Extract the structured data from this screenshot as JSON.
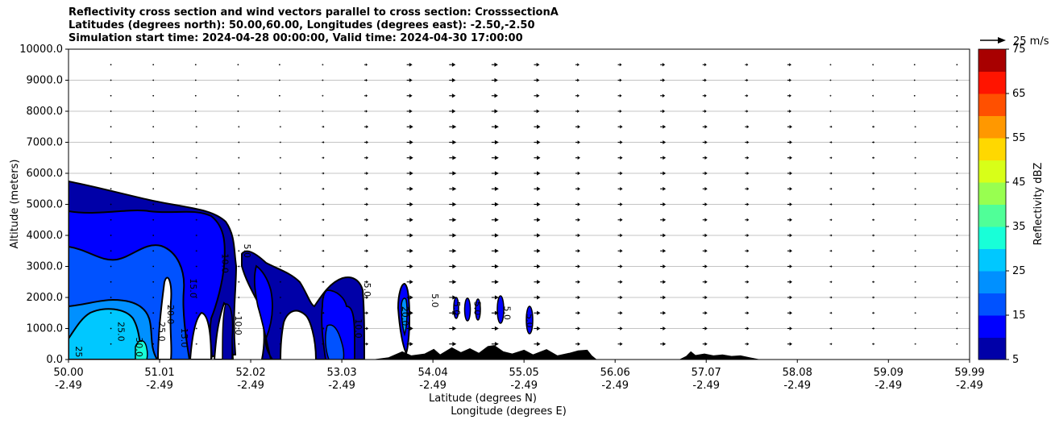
{
  "title_lines": [
    "Reflectivity cross section and wind vectors parallel to cross section: CrosssectionA",
    "Latitudes (degrees north): 50.00,60.00, Longitudes (degrees east): -2.50,-2.50",
    "Simulation start time: 2024-04-28 00:00:00, Valid time: 2024-04-30 17:00:00"
  ],
  "chart_data": {
    "type": "heatmap",
    "xlabel_lat": "Latitude (degrees N)",
    "xlabel_lon": "Longitude (degrees E)",
    "ylabel": "Altitude (meters)",
    "xlim": [
      50.0,
      59.99
    ],
    "ylim": [
      0,
      10000
    ],
    "x_ticks": [
      {
        "lat": "50.00",
        "lon": "-2.49",
        "value": 50.0
      },
      {
        "lat": "51.01",
        "lon": "-2.49",
        "value": 51.01
      },
      {
        "lat": "52.02",
        "lon": "-2.49",
        "value": 52.02
      },
      {
        "lat": "53.03",
        "lon": "-2.49",
        "value": 53.03
      },
      {
        "lat": "54.04",
        "lon": "-2.49",
        "value": 54.04
      },
      {
        "lat": "55.05",
        "lon": "-2.49",
        "value": 55.05
      },
      {
        "lat": "56.06",
        "lon": "-2.49",
        "value": 56.06
      },
      {
        "lat": "57.07",
        "lon": "-2.49",
        "value": 57.07
      },
      {
        "lat": "58.08",
        "lon": "-2.49",
        "value": 58.08
      },
      {
        "lat": "59.09",
        "lon": "-2.49",
        "value": 59.09
      },
      {
        "lat": "59.99",
        "lon": "-2.49",
        "value": 59.99
      }
    ],
    "y_ticks": [
      {
        "label": "0.0",
        "value": 0
      },
      {
        "label": "1000.0",
        "value": 1000
      },
      {
        "label": "2000.0",
        "value": 2000
      },
      {
        "label": "3000.0",
        "value": 3000
      },
      {
        "label": "4000.0",
        "value": 4000
      },
      {
        "label": "5000.0",
        "value": 5000
      },
      {
        "label": "6000.0",
        "value": 6000
      },
      {
        "label": "7000.0",
        "value": 7000
      },
      {
        "label": "8000.0",
        "value": 8000
      },
      {
        "label": "9000.0",
        "value": 9000
      },
      {
        "label": "10000.0",
        "value": 10000
      }
    ],
    "grid": "horizontal",
    "colorbar": {
      "label": "Reflectivity dBZ",
      "levels": [
        5,
        10,
        15,
        20,
        25,
        30,
        35,
        40,
        45,
        50,
        55,
        60,
        65,
        70,
        75
      ],
      "colors": [
        "#0000a8",
        "#0000ff",
        "#0052ff",
        "#0090ff",
        "#00c8ff",
        "#18ffd8",
        "#50ff98",
        "#98ff50",
        "#d8ff18",
        "#ffd800",
        "#ff9800",
        "#ff5000",
        "#ff1400",
        "#a80000"
      ],
      "tick_labels": [
        {
          "label": "5",
          "value": 5
        },
        {
          "label": "15",
          "value": 15
        },
        {
          "label": "25",
          "value": 25
        },
        {
          "label": "35",
          "value": 35
        },
        {
          "label": "45",
          "value": 45
        },
        {
          "label": "55",
          "value": 55
        },
        {
          "label": "65",
          "value": 65
        },
        {
          "label": "75",
          "value": 75
        }
      ]
    },
    "wind_key": {
      "label": "25 m/s",
      "speed": 25
    },
    "vectors": {
      "lat_values": [
        50.47,
        50.94,
        51.41,
        51.88,
        52.34,
        52.81,
        53.28,
        53.75,
        54.22,
        54.69,
        55.16,
        55.62,
        56.09,
        56.56,
        57.03,
        57.5,
        57.97,
        58.44,
        58.91,
        59.38,
        59.85
      ],
      "alt_values": [
        500,
        1000,
        1500,
        2000,
        2500,
        3000,
        3500,
        4000,
        4500,
        5000,
        5500,
        6000,
        6500,
        7000,
        7500,
        8000,
        8500,
        9000,
        9500
      ],
      "speed_by_lat": [
        1,
        1,
        2,
        2,
        2,
        3,
        5,
        8,
        9,
        9,
        8,
        6,
        6,
        7,
        6,
        5,
        6,
        3,
        3,
        2,
        1
      ]
    },
    "terrain": [
      [
        50.0,
        0
      ],
      [
        53.4,
        0
      ],
      [
        53.55,
        60
      ],
      [
        53.7,
        250
      ],
      [
        53.8,
        120
      ],
      [
        53.95,
        180
      ],
      [
        54.05,
        330
      ],
      [
        54.12,
        150
      ],
      [
        54.25,
        380
      ],
      [
        54.35,
        220
      ],
      [
        54.45,
        350
      ],
      [
        54.55,
        200
      ],
      [
        54.65,
        420
      ],
      [
        54.72,
        450
      ],
      [
        54.82,
        250
      ],
      [
        54.92,
        180
      ],
      [
        55.05,
        300
      ],
      [
        55.15,
        150
      ],
      [
        55.3,
        320
      ],
      [
        55.42,
        120
      ],
      [
        55.55,
        200
      ],
      [
        55.65,
        280
      ],
      [
        55.75,
        300
      ],
      [
        55.8,
        120
      ],
      [
        55.85,
        0
      ],
      [
        56.78,
        0
      ],
      [
        56.85,
        100
      ],
      [
        56.9,
        250
      ],
      [
        56.95,
        130
      ],
      [
        57.05,
        180
      ],
      [
        57.15,
        120
      ],
      [
        57.25,
        150
      ],
      [
        57.35,
        100
      ],
      [
        57.45,
        120
      ],
      [
        57.55,
        60
      ],
      [
        57.65,
        0
      ],
      [
        59.99,
        0
      ]
    ],
    "contour_labels": [
      {
        "text": "5.0",
        "lat": 51.95,
        "alt": 3500
      },
      {
        "text": "10.0",
        "lat": 51.7,
        "alt": 3100
      },
      {
        "text": "15.0",
        "lat": 51.35,
        "alt": 2300
      },
      {
        "text": "20.0",
        "lat": 51.1,
        "alt": 1450
      },
      {
        "text": "25.0",
        "lat": 50.55,
        "alt": 900
      },
      {
        "text": "25.0",
        "lat": 51.0,
        "alt": 900
      },
      {
        "text": "30.0",
        "lat": 50.75,
        "alt": 400
      },
      {
        "text": "25",
        "lat": 50.08,
        "alt": 250
      },
      {
        "text": "10.0",
        "lat": 51.85,
        "alt": 1100
      },
      {
        "text": "15.0",
        "lat": 51.25,
        "alt": 700
      },
      {
        "text": "5.0",
        "lat": 53.28,
        "alt": 2250
      },
      {
        "text": "10.0",
        "lat": 53.18,
        "alt": 1000
      },
      {
        "text": "20.0",
        "lat": 53.7,
        "alt": 1400
      },
      {
        "text": "5.0",
        "lat": 54.03,
        "alt": 1900
      },
      {
        "text": "5.0",
        "lat": 54.27,
        "alt": 1650
      },
      {
        "text": "5.0",
        "lat": 54.5,
        "alt": 1650
      },
      {
        "text": "5.0",
        "lat": 54.83,
        "alt": 1500
      },
      {
        "text": "5.0",
        "lat": 55.08,
        "alt": 1250
      }
    ]
  }
}
